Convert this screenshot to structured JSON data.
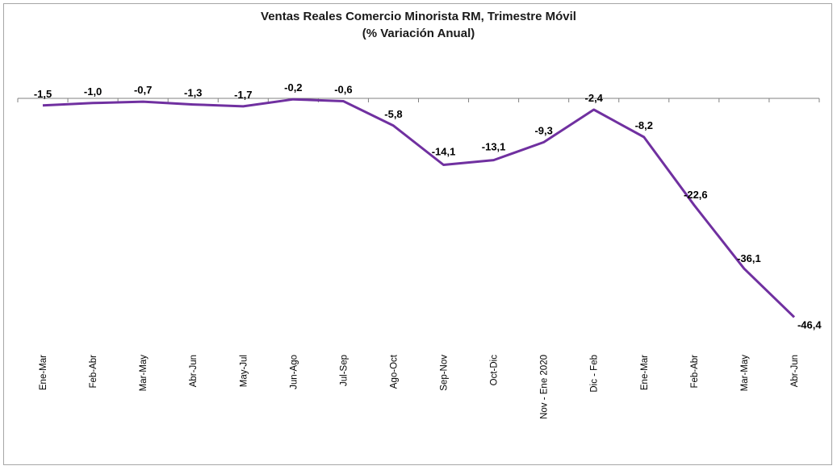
{
  "chart_data": {
    "type": "line",
    "title": "Ventas Reales Comercio Minorista RM, Trimestre Móvil",
    "subtitle": "(% Variación Anual)",
    "xlabel": "",
    "ylabel": "",
    "categories": [
      "Ene-Mar",
      "Feb-Abr",
      "Mar-May",
      "Abr-Jun",
      "May-Jul",
      "Jun-Ago",
      "Jul-Sep",
      "Ago-Oct",
      "Sep-Nov",
      "Oct-Dic",
      "Nov - Ene 2020",
      "Dic - Feb",
      "Ene-Mar",
      "Feb-Abr",
      "Mar-May",
      "Abr-Jun"
    ],
    "series": [
      {
        "values": [
          -1.5,
          -1.0,
          -0.7,
          -1.3,
          -1.7,
          -0.2,
          -0.6,
          -5.8,
          -14.1,
          -13.1,
          -9.3,
          -2.4,
          -8.2,
          -22.6,
          -36.1,
          -46.4
        ],
        "labels": [
          "-1,5",
          "-1,0",
          "-0,7",
          "-1,3",
          "-1,7",
          "-0,2",
          "-0,6",
          "-5,8",
          "-14,1",
          "-13,1",
          "-9,3",
          "-2,4",
          "-8,2",
          "-22,6",
          "-36,1",
          "-46,4"
        ],
        "color": "#7030a0"
      }
    ],
    "ylim": [
      -50,
      0
    ],
    "grid": false,
    "legend": "none"
  }
}
